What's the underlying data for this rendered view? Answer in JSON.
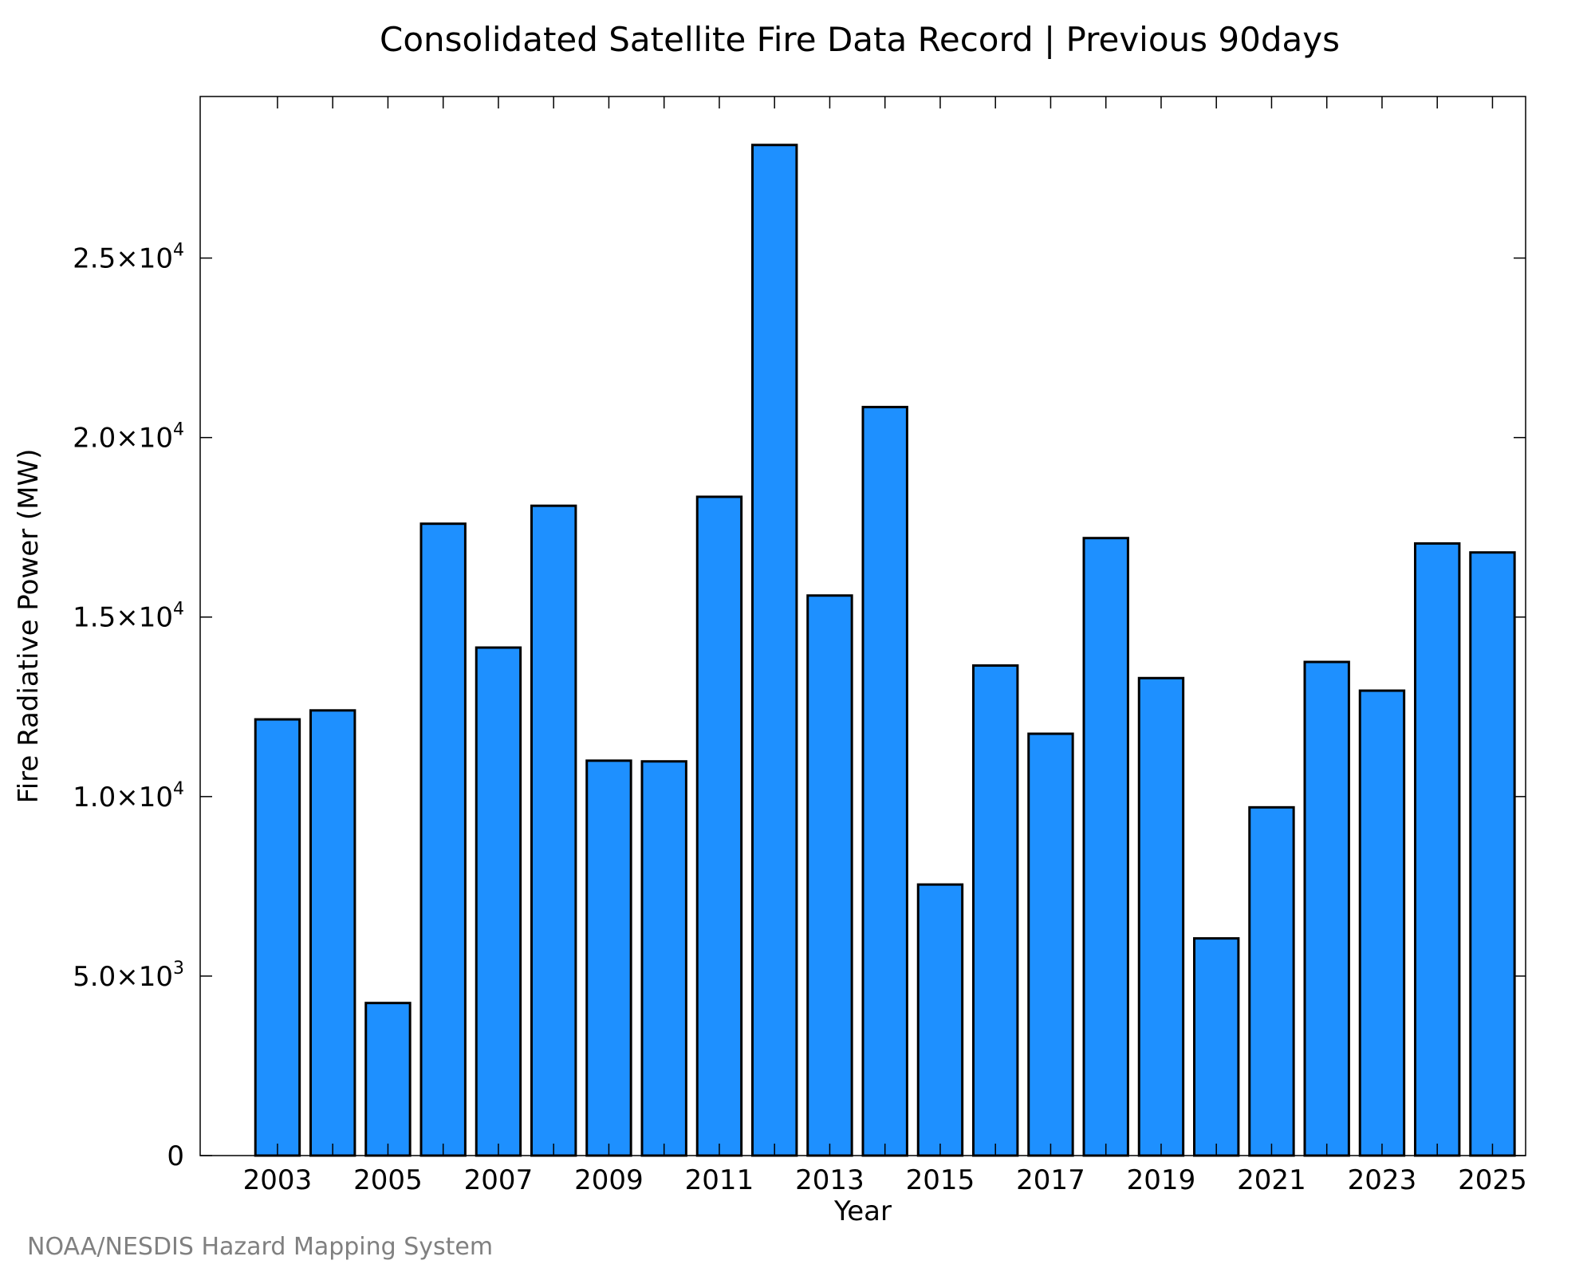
{
  "chart_data": {
    "type": "bar",
    "title": "Consolidated Satellite Fire Data Record | Previous 90days",
    "xlabel": "Year",
    "ylabel": "Fire Radiative Power (MW)",
    "categories": [
      2003,
      2004,
      2005,
      2006,
      2007,
      2008,
      2009,
      2010,
      2011,
      2012,
      2013,
      2014,
      2015,
      2016,
      2017,
      2018,
      2019,
      2020,
      2021,
      2022,
      2023,
      2024,
      2025
    ],
    "values": [
      12150,
      12400,
      4250,
      17600,
      14150,
      18100,
      11000,
      10980,
      18350,
      28150,
      15600,
      20850,
      7550,
      13650,
      11750,
      17200,
      13300,
      6050,
      9700,
      13750,
      12950,
      17050,
      16800
    ],
    "x_tick_labels": [
      "2003",
      "2005",
      "2007",
      "2009",
      "2011",
      "2013",
      "2015",
      "2017",
      "2019",
      "2021",
      "2023",
      "2025"
    ],
    "y_ticks": [
      {
        "value": 0,
        "mant": "0",
        "exp": ""
      },
      {
        "value": 5000,
        "mant": "5.0×10",
        "exp": "3"
      },
      {
        "value": 10000,
        "mant": "1.0×10",
        "exp": "4"
      },
      {
        "value": 15000,
        "mant": "1.5×10",
        "exp": "4"
      },
      {
        "value": 20000,
        "mant": "2.0×10",
        "exp": "4"
      },
      {
        "value": 25000,
        "mant": "2.5×10",
        "exp": "4"
      }
    ],
    "ylim": [
      0,
      29500
    ],
    "xlim": [
      2001.6,
      2025.6
    ],
    "grid": false,
    "bar_color": "#1e90ff",
    "edge_color": "#000000"
  },
  "credit": "NOAA/NESDIS Hazard Mapping System"
}
